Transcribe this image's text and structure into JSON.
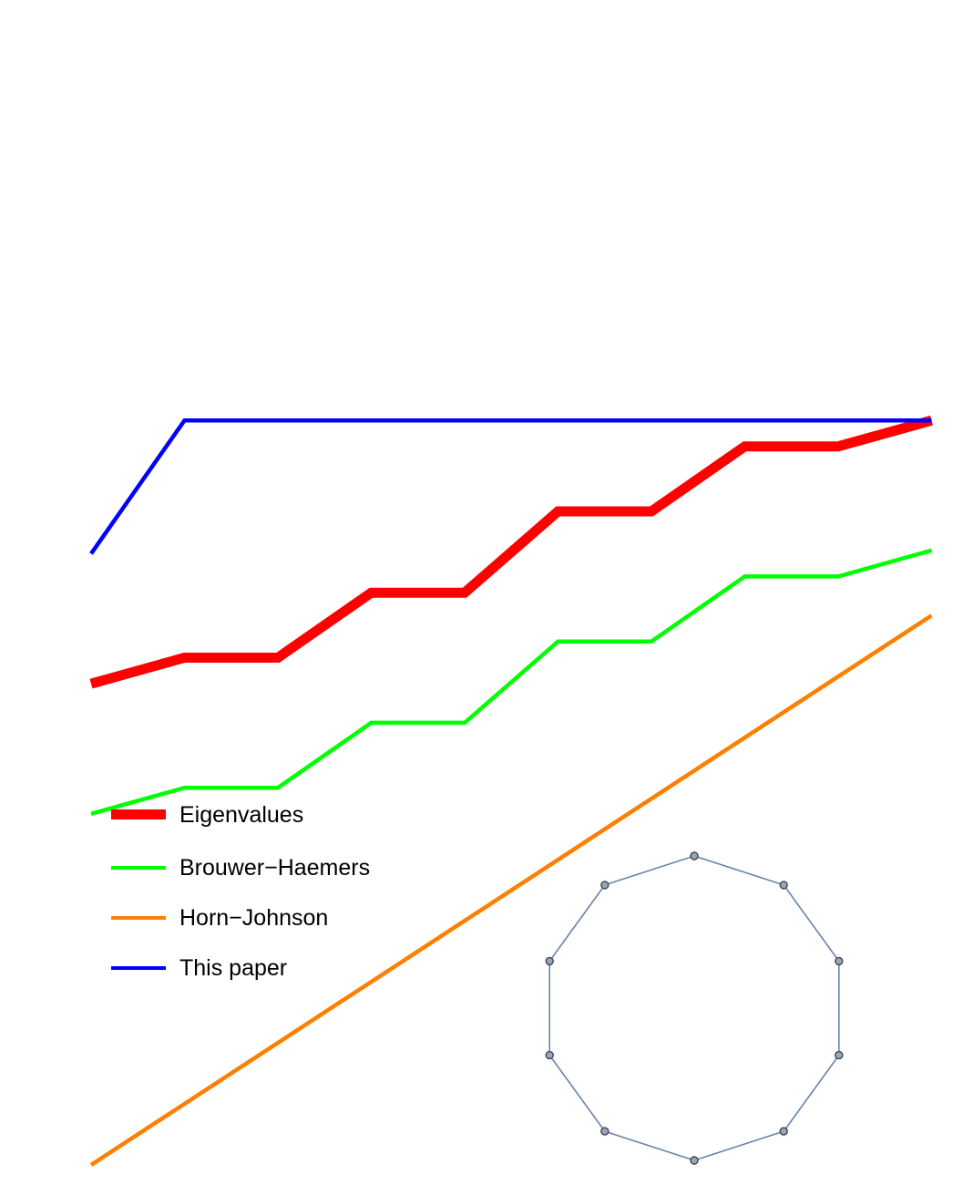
{
  "chart_data": {
    "type": "line",
    "title": "",
    "xlabel": "",
    "ylabel": "",
    "axes_visible": false,
    "grid": false,
    "legend_position": "lower-left",
    "x": [
      1,
      2,
      3,
      4,
      5,
      6,
      7,
      8,
      9,
      10
    ],
    "series": [
      {
        "name": "Eigenvalues",
        "color": "#ff0000",
        "values": [
          2.28,
          2.36,
          2.36,
          2.56,
          2.56,
          2.81,
          2.81,
          3.01,
          3.01,
          3.09
        ]
      },
      {
        "name": "Brouwer−Haemers",
        "color": "#00ff00",
        "values": [
          1.88,
          1.96,
          1.96,
          2.16,
          2.16,
          2.41,
          2.41,
          2.61,
          2.61,
          2.69
        ]
      },
      {
        "name": "Horn−Johnson",
        "color": "#ff8000",
        "values": [
          0.8,
          1.02,
          1.24,
          1.46,
          1.68,
          1.9,
          2.12,
          2.34,
          2.56,
          2.49
        ]
      },
      {
        "name": "This paper",
        "color": "#0000ff",
        "values": [
          2.68,
          3.09,
          3.09,
          3.09,
          3.09,
          3.09,
          3.09,
          3.09,
          3.09,
          3.09
        ]
      }
    ],
    "inset": {
      "type": "graph",
      "description_shape": "cycle",
      "vertex_count": 10,
      "edge_color": "#6b83a8",
      "vertex_fill": "#9aa5b8",
      "vertex_stroke": "#3d4656"
    }
  }
}
